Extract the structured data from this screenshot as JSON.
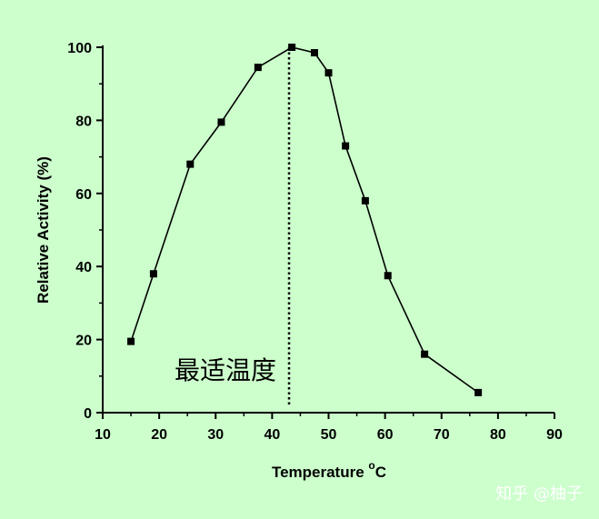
{
  "chart_data": {
    "type": "line",
    "xlabel": "Temperature",
    "xlabel_sup": "o",
    "xlabel_unit": "C",
    "ylabel": "Relative Activity (%)",
    "xlim": [
      10,
      90
    ],
    "ylim": [
      0,
      100
    ],
    "xticks": [
      "10",
      "20",
      "30",
      "40",
      "50",
      "60",
      "70",
      "80",
      "90"
    ],
    "yticks": [
      "0",
      "20",
      "40",
      "60",
      "80",
      "100"
    ],
    "grid": false,
    "marker": "square",
    "series": [
      {
        "x": [
          15,
          19,
          25.5,
          31,
          37.5,
          43.5,
          47.5,
          50,
          53,
          56.5,
          60.5,
          67,
          76.5
        ],
        "values": [
          19.5,
          38,
          68,
          79.5,
          94.5,
          100,
          98.5,
          93,
          73,
          58,
          37.5,
          16,
          5.5
        ]
      }
    ],
    "annotations": [
      {
        "text": "最适温度",
        "x": 43,
        "style": "dotted-vertical-line"
      }
    ],
    "watermark": "知乎 @柚子",
    "colors": {
      "background": "#ccffcc",
      "line": "#000000",
      "watermark": "#ffffff"
    }
  }
}
